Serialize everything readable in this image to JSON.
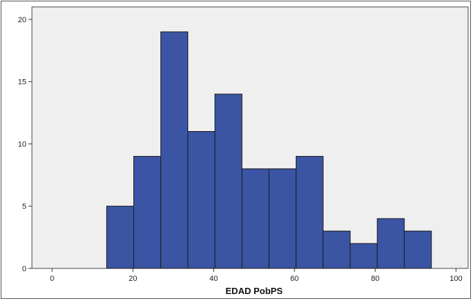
{
  "chart_data": {
    "type": "bar",
    "title": "",
    "xlabel": "EDAD PobPS",
    "ylabel": "",
    "xlim": [
      -5,
      103
    ],
    "ylim": [
      0,
      21
    ],
    "xticks": [
      0,
      20,
      40,
      60,
      80,
      100
    ],
    "yticks": [
      0,
      5,
      10,
      15,
      20
    ],
    "grid": false,
    "bins": [
      {
        "start": 13.5,
        "end": 20.2,
        "value": 5
      },
      {
        "start": 20.2,
        "end": 26.9,
        "value": 9
      },
      {
        "start": 26.9,
        "end": 33.6,
        "value": 19
      },
      {
        "start": 33.6,
        "end": 40.3,
        "value": 11
      },
      {
        "start": 40.3,
        "end": 47.0,
        "value": 14
      },
      {
        "start": 47.0,
        "end": 53.7,
        "value": 8
      },
      {
        "start": 53.7,
        "end": 60.4,
        "value": 8
      },
      {
        "start": 60.4,
        "end": 67.1,
        "value": 9
      },
      {
        "start": 67.1,
        "end": 73.8,
        "value": 3
      },
      {
        "start": 73.8,
        "end": 80.5,
        "value": 2
      },
      {
        "start": 80.5,
        "end": 87.2,
        "value": 4
      },
      {
        "start": 87.2,
        "end": 93.9,
        "value": 3
      }
    ],
    "colors": {
      "bar": "#3b55a4",
      "bar_edge": "#1a1a1a",
      "plot_bg": "#efefef"
    }
  }
}
